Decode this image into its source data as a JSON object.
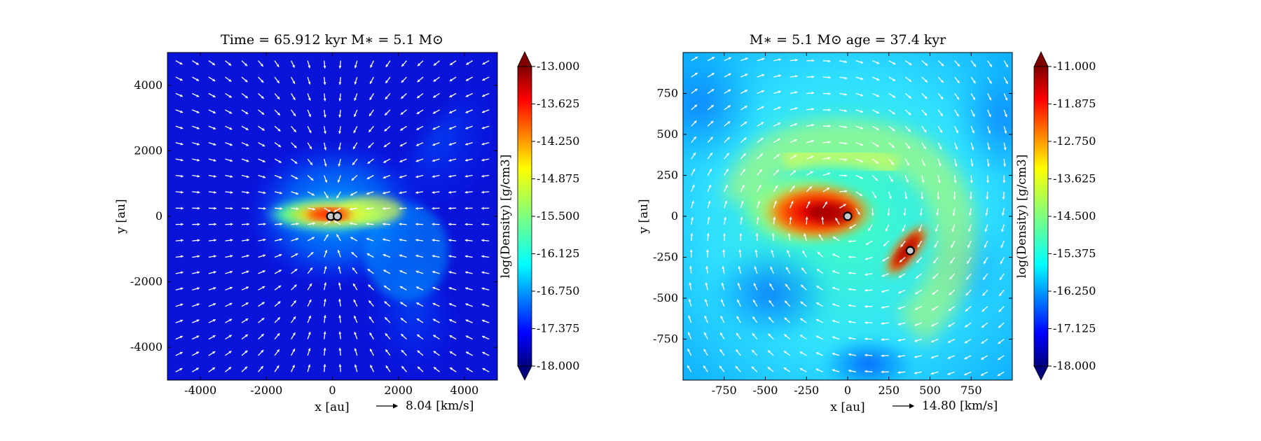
{
  "chart_data": [
    {
      "type": "heatmap",
      "title": "Time = 65.912 kyr    M$_*$ = 5.1 M$_\\odot$",
      "title_text": "Time = 65.912 kyr    M∗ = 5.1 M⊙",
      "xlabel": "x [au]",
      "ylabel": "y [au]",
      "xlim": [
        -5000,
        5000
      ],
      "ylim": [
        -5000,
        5000
      ],
      "xticks": [
        -4000,
        -2000,
        0,
        2000,
        4000
      ],
      "yticks": [
        -4000,
        -2000,
        0,
        2000,
        4000
      ],
      "xtick_labels": [
        "-4000",
        "-2000",
        "0",
        "2000",
        "4000"
      ],
      "ytick_labels": [
        "-4000",
        "-2000",
        "0",
        "2000",
        "4000"
      ],
      "colorbar": {
        "label": "log(Density) [g/cm3]",
        "min": -18.0,
        "max": -13.0,
        "ticks": [
          "-13.000",
          "-13.625",
          "-14.250",
          "-14.875",
          "-15.500",
          "-16.125",
          "-16.750",
          "-17.375",
          "-18.000"
        ]
      },
      "quiver_key": "8.04 [km/s]",
      "sinks": [
        {
          "x": -50,
          "y": 0
        },
        {
          "x": 150,
          "y": 0
        }
      ]
    },
    {
      "type": "heatmap",
      "title_text": "M∗ = 5.1 M⊙          age = 37.4 kyr",
      "xlabel": "x [au]",
      "ylabel": "y [au]",
      "xlim": [
        -1000,
        1000
      ],
      "ylim": [
        -1000,
        1000
      ],
      "xticks": [
        -750,
        -500,
        -250,
        0,
        250,
        500,
        750
      ],
      "yticks": [
        -750,
        -500,
        -250,
        0,
        250,
        500,
        750
      ],
      "xtick_labels": [
        "-750",
        "-500",
        "-250",
        "0",
        "250",
        "500",
        "750"
      ],
      "ytick_labels": [
        "-750",
        "-500",
        "-250",
        "0",
        "250",
        "500",
        "750"
      ],
      "colorbar": {
        "label": "log(Density) [g/cm3]",
        "min": -18.0,
        "max": -11.0,
        "ticks": [
          "-11.000",
          "-11.875",
          "-12.750",
          "-13.625",
          "-14.500",
          "-15.375",
          "-16.250",
          "-17.125",
          "-18.000"
        ]
      },
      "quiver_key": "14.80 [km/s]",
      "sinks": [
        {
          "x": 0,
          "y": 0
        },
        {
          "x": 380,
          "y": -210
        }
      ]
    }
  ],
  "colors": {
    "jet": [
      "#00007f",
      "#0000ff",
      "#007fff",
      "#00ffff",
      "#7fff7f",
      "#ffff00",
      "#ff7f00",
      "#ff0000",
      "#7f0000"
    ]
  }
}
